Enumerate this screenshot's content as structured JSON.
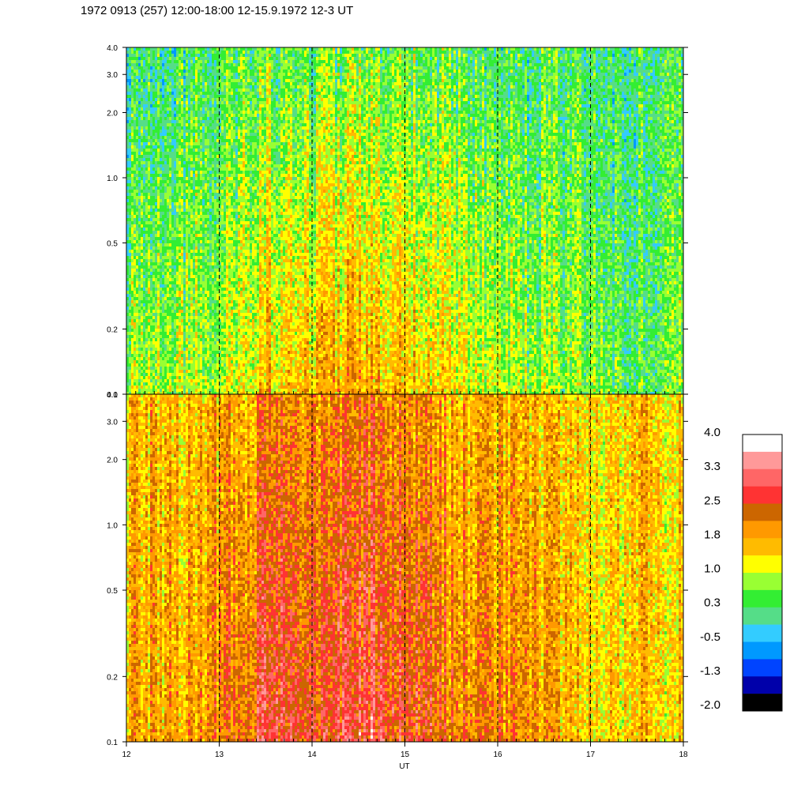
{
  "title": "1972 0913 (257) 12:00-18:00 12-15.9.1972  12-3 UT",
  "chart_data": [
    {
      "type": "heatmap",
      "panel": "top",
      "x_ticks": [
        "12",
        "13",
        "14",
        "15",
        "16",
        "17",
        "18"
      ],
      "y_scale": "log",
      "y_ticks": [
        {
          "value": 0.1,
          "label": "0.1"
        },
        {
          "value": 0.2,
          "label": "0.2"
        },
        {
          "value": 0.5,
          "label": "0.5"
        },
        {
          "value": 1.0,
          "label": "1.0"
        },
        {
          "value": 2.0,
          "label": "2.0"
        },
        {
          "value": 3.0,
          "label": "3.0"
        },
        {
          "value": 4.0,
          "label": "4.0"
        }
      ],
      "xlim": [
        12,
        18
      ],
      "ylim": [
        0.1,
        4.0
      ],
      "hour_dashed_lines": [
        13,
        14,
        15,
        16,
        17
      ],
      "profile_level_by_hour": [
        {
          "x": 12.0,
          "low_freq": 0.8,
          "high_freq": 0.1
        },
        {
          "x": 12.5,
          "low_freq": 0.9,
          "high_freq": 0.2
        },
        {
          "x": 13.0,
          "low_freq": 0.9,
          "high_freq": 0.4
        },
        {
          "x": 13.5,
          "low_freq": 1.6,
          "high_freq": 0.6
        },
        {
          "x": 14.0,
          "low_freq": 1.6,
          "high_freq": 0.4
        },
        {
          "x": 14.5,
          "low_freq": 1.8,
          "high_freq": 0.6
        },
        {
          "x": 15.0,
          "low_freq": 1.6,
          "high_freq": 0.5
        },
        {
          "x": 15.5,
          "low_freq": 1.3,
          "high_freq": 0.4
        },
        {
          "x": 16.0,
          "low_freq": 0.9,
          "high_freq": 0.2
        },
        {
          "x": 16.5,
          "low_freq": 0.8,
          "high_freq": 0.3
        },
        {
          "x": 17.0,
          "low_freq": 0.6,
          "high_freq": 0.2
        },
        {
          "x": 17.5,
          "low_freq": 0.5,
          "high_freq": 0.3
        },
        {
          "x": 18.0,
          "low_freq": 0.6,
          "high_freq": 0.3
        }
      ]
    },
    {
      "type": "heatmap",
      "panel": "bottom",
      "x_ticks": [
        "12",
        "13",
        "14",
        "15",
        "16",
        "17",
        "18"
      ],
      "xlabel": "UT",
      "y_scale": "log",
      "y_ticks": [
        {
          "value": 0.1,
          "label": "0.1"
        },
        {
          "value": 0.2,
          "label": "0.2"
        },
        {
          "value": 0.5,
          "label": "0.5"
        },
        {
          "value": 1.0,
          "label": "1.0"
        },
        {
          "value": 2.0,
          "label": "2.0"
        },
        {
          "value": 3.0,
          "label": "3.0"
        },
        {
          "value": 4.0,
          "label": "4.0"
        }
      ],
      "xlim": [
        12,
        18
      ],
      "ylim": [
        0.1,
        4.0
      ],
      "hour_dashed_lines": [
        13,
        14,
        15,
        16,
        17
      ],
      "profile_level_by_hour": [
        {
          "x": 12.0,
          "low_freq": 1.8,
          "high_freq": 1.6
        },
        {
          "x": 12.5,
          "low_freq": 1.8,
          "high_freq": 1.6
        },
        {
          "x": 13.0,
          "low_freq": 2.1,
          "high_freq": 1.7
        },
        {
          "x": 13.5,
          "low_freq": 2.7,
          "high_freq": 2.0
        },
        {
          "x": 14.0,
          "low_freq": 2.6,
          "high_freq": 2.0
        },
        {
          "x": 14.5,
          "low_freq": 2.8,
          "high_freq": 2.2
        },
        {
          "x": 15.0,
          "low_freq": 2.7,
          "high_freq": 2.1
        },
        {
          "x": 15.5,
          "low_freq": 2.3,
          "high_freq": 1.8
        },
        {
          "x": 16.0,
          "low_freq": 2.0,
          "high_freq": 1.6
        },
        {
          "x": 16.5,
          "low_freq": 1.9,
          "high_freq": 1.6
        },
        {
          "x": 17.0,
          "low_freq": 1.6,
          "high_freq": 1.5
        },
        {
          "x": 17.5,
          "low_freq": 1.4,
          "high_freq": 1.5
        },
        {
          "x": 18.0,
          "low_freq": 1.6,
          "high_freq": 1.5
        }
      ]
    }
  ],
  "colorbar": {
    "labels": [
      "4.0",
      "3.3",
      "2.5",
      "1.8",
      "1.0",
      "0.3",
      "-0.5",
      "-1.3",
      "-2.0"
    ],
    "range": [
      -2.0,
      4.0
    ],
    "colors": [
      "#ffffff",
      "#ff9999",
      "#ff6666",
      "#ff3333",
      "#cc6600",
      "#ff9900",
      "#ffbb00",
      "#ffff00",
      "#99ff33",
      "#33ee33",
      "#55dd88",
      "#33ccff",
      "#0099ff",
      "#0044ff",
      "#0000aa",
      "#000000"
    ]
  }
}
